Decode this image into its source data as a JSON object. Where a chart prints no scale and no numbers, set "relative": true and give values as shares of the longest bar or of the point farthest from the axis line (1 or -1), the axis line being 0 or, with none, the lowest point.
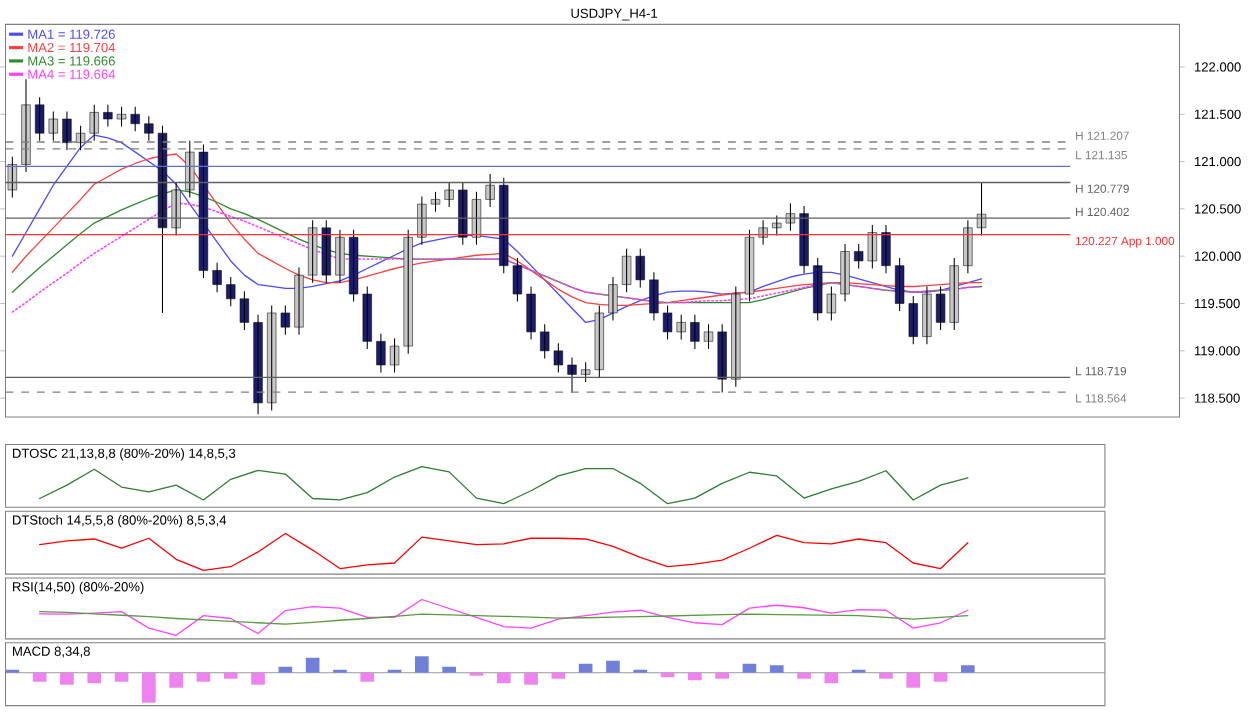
{
  "chart_data": [
    {
      "type": "candlestick",
      "title": "USDJPY_H4-1",
      "categories": [
        null,
        null,
        null,
        null,
        null,
        null,
        null,
        null,
        null,
        null,
        null,
        null,
        null,
        null,
        null,
        null,
        null,
        null,
        null,
        null,
        null,
        null,
        null,
        null,
        null,
        null,
        null,
        null,
        null,
        null,
        null,
        null,
        null,
        null,
        null,
        null,
        null,
        null,
        null,
        null,
        null,
        null,
        null,
        null,
        null,
        null,
        null,
        null,
        null,
        null,
        null,
        null,
        null,
        null,
        null,
        null,
        null,
        null,
        null,
        null,
        null,
        null,
        null,
        null,
        null,
        null,
        null,
        null,
        null,
        null,
        null,
        null,
        null,
        null,
        null,
        null,
        null,
        null,
        null,
        null,
        null,
        null,
        null,
        null,
        null,
        null
      ],
      "ohlc": [
        [
          120.7,
          121.05,
          120.62,
          120.97
        ],
        [
          120.97,
          121.87,
          120.89,
          121.6
        ],
        [
          121.6,
          121.68,
          121.22,
          121.3
        ],
        [
          121.3,
          121.53,
          121.22,
          121.45
        ],
        [
          121.45,
          121.53,
          121.12,
          121.2
        ],
        [
          121.2,
          121.38,
          121.12,
          121.3
        ],
        [
          121.3,
          121.6,
          121.22,
          121.52
        ],
        [
          121.52,
          121.6,
          121.37,
          121.45
        ],
        [
          121.45,
          121.58,
          121.37,
          121.5
        ],
        [
          121.5,
          121.58,
          121.32,
          121.4
        ],
        [
          121.4,
          121.48,
          121.22,
          121.3
        ],
        [
          121.3,
          121.38,
          119.4,
          120.3
        ],
        [
          120.3,
          120.78,
          120.22,
          120.7
        ],
        [
          120.7,
          121.22,
          120.62,
          121.1
        ],
        [
          121.1,
          121.18,
          119.77,
          119.85
        ],
        [
          119.85,
          119.93,
          119.62,
          119.7
        ],
        [
          119.7,
          119.78,
          119.47,
          119.55
        ],
        [
          119.55,
          119.63,
          119.22,
          119.3
        ],
        [
          119.3,
          119.38,
          118.33,
          118.45
        ],
        [
          118.45,
          119.48,
          118.37,
          119.4
        ],
        [
          119.4,
          119.48,
          119.17,
          119.25
        ],
        [
          119.25,
          119.88,
          119.17,
          119.8
        ],
        [
          119.8,
          120.38,
          119.72,
          120.3
        ],
        [
          120.3,
          120.38,
          119.72,
          119.8
        ],
        [
          119.8,
          120.28,
          119.72,
          120.2
        ],
        [
          120.2,
          120.28,
          119.52,
          119.6
        ],
        [
          119.6,
          119.68,
          119.02,
          119.1
        ],
        [
          119.1,
          119.18,
          118.77,
          118.85
        ],
        [
          118.85,
          119.13,
          118.77,
          119.05
        ],
        [
          119.05,
          120.28,
          118.97,
          120.2
        ],
        [
          120.2,
          120.63,
          120.12,
          120.55
        ],
        [
          120.55,
          120.68,
          120.47,
          120.6
        ],
        [
          120.6,
          120.78,
          120.52,
          120.7
        ],
        [
          120.7,
          120.78,
          120.12,
          120.2
        ],
        [
          120.2,
          120.68,
          120.12,
          120.6
        ],
        [
          120.6,
          120.87,
          120.52,
          120.75
        ],
        [
          120.75,
          120.83,
          119.82,
          119.9
        ],
        [
          119.9,
          119.98,
          119.52,
          119.6
        ],
        [
          119.6,
          119.68,
          119.12,
          119.2
        ],
        [
          119.2,
          119.28,
          118.92,
          119.0
        ],
        [
          119.0,
          119.08,
          118.77,
          118.85
        ],
        [
          118.85,
          118.93,
          118.56,
          118.75
        ],
        [
          118.75,
          118.88,
          118.67,
          118.8
        ],
        [
          118.8,
          119.48,
          118.72,
          119.4
        ],
        [
          119.4,
          119.78,
          119.32,
          119.7
        ],
        [
          119.7,
          120.08,
          119.62,
          120.0
        ],
        [
          120.0,
          120.08,
          119.67,
          119.75
        ],
        [
          119.75,
          119.83,
          119.32,
          119.4
        ],
        [
          119.4,
          119.48,
          119.12,
          119.2
        ],
        [
          119.2,
          119.38,
          119.12,
          119.3
        ],
        [
          119.3,
          119.38,
          119.02,
          119.1
        ],
        [
          119.1,
          119.28,
          119.02,
          119.2
        ],
        [
          119.2,
          119.28,
          118.56,
          118.7
        ],
        [
          118.7,
          119.68,
          118.62,
          119.6
        ],
        [
          119.6,
          120.28,
          119.52,
          120.2
        ],
        [
          120.2,
          120.38,
          120.12,
          120.3
        ],
        [
          120.3,
          120.43,
          120.22,
          120.35
        ],
        [
          120.35,
          120.56,
          120.27,
          120.45
        ],
        [
          120.45,
          120.53,
          119.82,
          119.9
        ],
        [
          119.9,
          119.98,
          119.32,
          119.4
        ],
        [
          119.4,
          119.68,
          119.32,
          119.6
        ],
        [
          119.6,
          120.13,
          119.52,
          120.05
        ],
        [
          120.05,
          120.13,
          119.87,
          119.95
        ],
        [
          119.95,
          120.33,
          119.87,
          120.25
        ],
        [
          120.25,
          120.33,
          119.82,
          119.9
        ],
        [
          119.9,
          119.98,
          119.42,
          119.5
        ],
        [
          119.5,
          119.58,
          119.07,
          119.15
        ],
        [
          119.15,
          119.68,
          119.07,
          119.6
        ],
        [
          119.6,
          119.68,
          119.22,
          119.3
        ],
        [
          119.3,
          119.98,
          119.22,
          119.9
        ],
        [
          119.9,
          120.38,
          119.82,
          120.3
        ],
        [
          120.3,
          120.779,
          120.22,
          120.444
        ],
        null,
        null,
        null,
        null,
        null,
        null,
        null,
        null,
        null,
        null,
        null,
        null,
        null,
        null
      ],
      "colors": [
        "#c8c8c8",
        "#c8c8c8",
        "#1c1c6c",
        "#c8c8c8",
        "#1c1c6c",
        "#c8c8c8",
        "#c8c8c8",
        "#1c1c6c",
        "#c8c8c8",
        "#1c1c6c",
        "#1c1c6c",
        "#1c1c6c",
        "#c8c8c8",
        "#c8c8c8",
        "#1c1c6c",
        "#1c1c6c",
        "#1c1c6c",
        "#1c1c6c",
        "#1c1c6c",
        "#c8c8c8",
        "#1c1c6c",
        "#c8c8c8",
        "#c8c8c8",
        "#1c1c6c",
        "#c8c8c8",
        "#1c1c6c",
        "#1c1c6c",
        "#1c1c6c",
        "#c8c8c8",
        "#c8c8c8",
        "#c8c8c8",
        "#c8c8c8",
        "#c8c8c8",
        "#1c1c6c",
        "#c8c8c8",
        "#c8c8c8",
        "#1c1c6c",
        "#1c1c6c",
        "#1c1c6c",
        "#1c1c6c",
        "#1c1c6c",
        "#1c1c6c",
        "#c8c8c8",
        "#c8c8c8",
        "#c8c8c8",
        "#c8c8c8",
        "#1c1c6c",
        "#1c1c6c",
        "#1c1c6c",
        "#c8c8c8",
        "#1c1c6c",
        "#c8c8c8",
        "#1c1c6c",
        "#c8c8c8",
        "#c8c8c8",
        "#c8c8c8",
        "#c8c8c8",
        "#c8c8c8",
        "#1c1c6c",
        "#1c1c6c",
        "#c8c8c8",
        "#c8c8c8",
        "#1c1c6c",
        "#c8c8c8",
        "#1c1c6c",
        "#1c1c6c",
        "#1c1c6c",
        "#c8c8c8",
        "#1c1c6c",
        "#c8c8c8",
        "#c8c8c8",
        "#c8c8c8",
        null,
        null,
        null,
        null,
        null,
        null,
        null,
        null,
        null,
        null,
        null,
        null,
        null,
        null
      ],
      "series": [
        {
          "type": "line",
          "name": "MA1 = 119.726",
          "color": "#4a4aff",
          "values": [
            120.0,
            120.25,
            120.5,
            120.75,
            120.95,
            121.15,
            121.28,
            121.25,
            121.2,
            121.1,
            121.0,
            120.9,
            120.76,
            120.55,
            120.35,
            120.15,
            119.95,
            119.8,
            119.7,
            119.68,
            119.66,
            119.66,
            119.68,
            119.71,
            119.74,
            119.8,
            119.87,
            119.94,
            120.01,
            120.08,
            120.14,
            120.17,
            120.2,
            120.22,
            120.22,
            120.2,
            120.18,
            120.05,
            119.9,
            119.75,
            119.6,
            119.45,
            119.3,
            119.33,
            119.4,
            119.47,
            119.53,
            119.58,
            119.62,
            119.63,
            119.63,
            119.62,
            119.6,
            null,
            119.62,
            119.68,
            119.73,
            119.78,
            119.81,
            119.83,
            119.83,
            119.8,
            119.76,
            119.72,
            119.68,
            119.64,
            119.62,
            119.62,
            119.64,
            119.68,
            119.72,
            119.76,
            null,
            null,
            null,
            null,
            null,
            null,
            null,
            null,
            null,
            null,
            null,
            null,
            null,
            null
          ]
        },
        {
          "type": "line",
          "name": "MA2 = 119.704",
          "color": "#ff4040",
          "values": [
            119.83,
            120.0,
            120.15,
            120.3,
            120.45,
            120.6,
            120.76,
            120.84,
            120.92,
            120.98,
            121.03,
            121.06,
            121.08,
            120.95,
            120.75,
            120.55,
            120.35,
            120.18,
            120.03,
            119.95,
            119.87,
            119.8,
            119.75,
            119.72,
            119.72,
            119.75,
            119.79,
            119.83,
            119.87,
            119.9,
            119.93,
            119.95,
            119.97,
            119.99,
            120.01,
            120.02,
            120.03,
            119.95,
            119.85,
            119.75,
            119.65,
            119.57,
            119.51,
            119.49,
            119.48,
            119.48,
            119.49,
            119.5,
            119.51,
            119.53,
            119.55,
            119.57,
            119.59,
            119.61,
            119.62,
            119.64,
            119.66,
            119.68,
            119.7,
            119.71,
            119.72,
            119.72,
            119.71,
            119.7,
            119.69,
            119.68,
            119.68,
            119.69,
            119.7,
            119.71,
            119.72,
            119.72,
            null,
            null,
            null,
            null,
            null,
            null,
            null,
            null,
            null,
            null,
            null,
            null,
            null,
            null
          ]
        },
        {
          "type": "line",
          "name": "MA3 = 119.666",
          "color": "#2e8b2e",
          "values": [
            119.62,
            119.75,
            119.88,
            120.0,
            120.12,
            120.24,
            120.35,
            120.42,
            120.49,
            120.55,
            120.61,
            120.66,
            120.7,
            120.68,
            120.63,
            120.57,
            120.5,
            120.45,
            120.39,
            120.32,
            120.25,
            120.18,
            120.12,
            120.07,
            120.03,
            120.01,
            120.0,
            119.99,
            119.98,
            119.97,
            119.97,
            119.97,
            119.97,
            119.97,
            119.97,
            119.97,
            119.97,
            119.91,
            119.85,
            119.79,
            119.73,
            119.67,
            119.62,
            119.6,
            119.58,
            119.56,
            119.54,
            119.52,
            119.51,
            119.51,
            119.51,
            119.51,
            119.51,
            119.51,
            119.51,
            119.54,
            119.58,
            119.62,
            119.66,
            119.69,
            119.72,
            119.7,
            119.68,
            119.66,
            119.64,
            119.63,
            119.62,
            119.63,
            119.64,
            119.65,
            119.67,
            119.68,
            null,
            null,
            null,
            null,
            null,
            null,
            null,
            null,
            null,
            null,
            null,
            null,
            null,
            null
          ]
        },
        {
          "type": "line",
          "name": "MA4 = 119.664",
          "color": "#ff40ff",
          "line_style": "dotted",
          "values": [
            119.41,
            119.51,
            119.62,
            119.72,
            119.82,
            119.93,
            120.03,
            120.12,
            120.21,
            120.3,
            120.39,
            120.48,
            120.56,
            120.55,
            120.52,
            120.47,
            120.42,
            120.37,
            120.31,
            120.25,
            120.19,
            120.13,
            120.07,
            120.02,
            119.97,
            119.97,
            119.97,
            119.97,
            119.97,
            119.97,
            119.97,
            119.97,
            119.97,
            119.97,
            119.97,
            119.97,
            119.97,
            119.91,
            119.85,
            119.79,
            119.73,
            119.67,
            119.62,
            119.6,
            119.58,
            119.56,
            119.54,
            119.52,
            119.51,
            119.51,
            119.52,
            119.53,
            119.53,
            119.54,
            119.55,
            119.58,
            119.61,
            119.64,
            119.67,
            119.7,
            119.72,
            119.7,
            119.68,
            119.66,
            119.64,
            119.63,
            119.62,
            119.63,
            119.64,
            119.65,
            119.67,
            119.68,
            null,
            null,
            null,
            null,
            null,
            null,
            null,
            null,
            null,
            null,
            null,
            null,
            null,
            null
          ]
        }
      ],
      "ylim": [
        118.3,
        122.45
      ],
      "yticks": [
        {
          "value": 118.5,
          "label": "118.500"
        },
        {
          "value": 119,
          "label": "119.000"
        },
        {
          "value": 119.5,
          "label": "119.500"
        },
        {
          "value": 120,
          "label": "120.000"
        },
        {
          "value": 120.5,
          "label": "120.500"
        },
        {
          "value": 121,
          "label": "121.000"
        },
        {
          "value": 121.5,
          "label": "121.500"
        },
        {
          "value": 122,
          "label": "122.000"
        }
      ],
      "ref_lines": [
        {
          "axis": "y",
          "value": 121.207,
          "label": "H 121.207",
          "color": "#808080",
          "line_style": "dashed"
        },
        {
          "axis": "y",
          "value": 121.135,
          "label": "L 121.135",
          "color": "#808080",
          "line_style": "dashed"
        },
        {
          "axis": "y",
          "value": 120.95,
          "color": "#6070d0"
        },
        {
          "axis": "y",
          "value": 120.779,
          "label": "H 120.779",
          "color": "#606060"
        },
        {
          "axis": "y",
          "value": 120.402,
          "label": "H 120.402",
          "color": "#606060"
        },
        {
          "axis": "y",
          "value": 120.227,
          "label": "120.227 App 1.000",
          "color": "#ff3030"
        },
        {
          "axis": "y",
          "value": 118.719,
          "label": "L 118.719",
          "color": "#606060"
        },
        {
          "axis": "y",
          "value": 118.564,
          "label": "L 118.564",
          "color": "#808080",
          "line_style": "dashed"
        }
      ],
      "legend": "top left"
    },
    {
      "type": "line",
      "relative": true,
      "title": "DTOSC 21,13,8,8 (80%-20%) 14,8,5,3",
      "categories": [
        null,
        null,
        null,
        null,
        null,
        null,
        null,
        null,
        null,
        null,
        null,
        null,
        null,
        null,
        null,
        null,
        null,
        null,
        null,
        null,
        null,
        null,
        null,
        null,
        null,
        null,
        null,
        null,
        null,
        null,
        null,
        null,
        null,
        null,
        null,
        null
      ],
      "series": [
        {
          "color": "#2e7d32",
          "values": [
            null,
            0.14,
            0.5,
            0.93,
            0.45,
            0.32,
            0.5,
            0.1,
            0.66,
            0.9,
            0.8,
            0.14,
            0.1,
            0.3,
            0.72,
            1,
            0.86,
            0.15,
            0,
            0.35,
            0.75,
            0.95,
            0.95,
            0.55,
            0,
            0.15,
            0.55,
            0.85,
            0.75,
            0.15,
            0.4,
            0.6,
            0.89,
            0.1,
            0.5,
            0.7
          ]
        }
      ]
    },
    {
      "type": "line",
      "relative": true,
      "title": "DTStoch 14,5,5,8 (80%-20%) 8,5,3,4",
      "categories": [
        null,
        null,
        null,
        null,
        null,
        null,
        null,
        null,
        null,
        null,
        null,
        null,
        null,
        null,
        null,
        null,
        null,
        null,
        null,
        null,
        null,
        null,
        null,
        null,
        null,
        null,
        null,
        null,
        null,
        null,
        null,
        null,
        null,
        null,
        null,
        null
      ],
      "series": [
        {
          "color": "#ff0000",
          "values": [
            null,
            0.7,
            0.8,
            0.85,
            0.6,
            0.87,
            0.3,
            0,
            0.1,
            0.5,
            1,
            0.55,
            0.05,
            0.15,
            0.2,
            0.9,
            0.8,
            0.7,
            0.72,
            0.87,
            0.87,
            0.85,
            0.65,
            0.35,
            0.1,
            0.17,
            0.28,
            0.6,
            0.95,
            0.75,
            0.72,
            0.85,
            0.75,
            0.2,
            0.05,
            0.75
          ]
        }
      ]
    },
    {
      "type": "line",
      "relative": true,
      "title": "RSI(14,50) (80%-20%)",
      "categories": [
        null,
        null,
        null,
        null,
        null,
        null,
        null,
        null,
        null,
        null,
        null,
        null,
        null,
        null,
        null,
        null,
        null,
        null,
        null,
        null,
        null,
        null,
        null,
        null,
        null,
        null,
        null,
        null,
        null,
        null,
        null,
        null,
        null,
        null,
        null,
        null
      ],
      "series": [
        {
          "color": "#ff44ff",
          "values": [
            null,
            0.6,
            0.59,
            0.62,
            0.66,
            0.2,
            0,
            0.55,
            0.47,
            0.05,
            0.69,
            0.8,
            0.76,
            0.5,
            0.5,
            1,
            0.75,
            0.5,
            0.24,
            0.2,
            0.45,
            0.55,
            0.65,
            0.7,
            0.5,
            0.35,
            0.3,
            0.76,
            0.84,
            0.77,
            0.62,
            0.72,
            0.7,
            0.2,
            0.35,
            0.7
          ]
        },
        {
          "color": "#5a9a40",
          "values": [
            null,
            0.66,
            0.64,
            0.6,
            0.56,
            0.52,
            0.47,
            0.43,
            0.39,
            0.35,
            0.31,
            0.36,
            0.42,
            0.47,
            0.53,
            0.59,
            0.57,
            0.55,
            0.53,
            0.51,
            0.48,
            0.49,
            0.51,
            0.52,
            0.54,
            0.56,
            0.58,
            0.59,
            0.58,
            0.57,
            0.56,
            0.55,
            0.5,
            0.45,
            0.5,
            0.55
          ]
        }
      ]
    },
    {
      "type": "bar",
      "relative": true,
      "title": "MACD 8,34,8",
      "categories": [
        null,
        null,
        null,
        null,
        null,
        null,
        null,
        null,
        null,
        null,
        null,
        null,
        null,
        null,
        null,
        null,
        null,
        null,
        null,
        null,
        null,
        null,
        null,
        null,
        null,
        null,
        null,
        null,
        null,
        null,
        null,
        null,
        null,
        null,
        null,
        null
      ],
      "values": [
        0.1,
        -0.3,
        -0.4,
        -0.35,
        -0.3,
        -1,
        -0.5,
        -0.3,
        -0.2,
        -0.4,
        0.2,
        0.5,
        0.1,
        -0.3,
        0.1,
        0.55,
        0.2,
        -0.1,
        -0.35,
        -0.4,
        -0.2,
        0.3,
        0.4,
        0.1,
        -0.15,
        -0.25,
        -0.2,
        0.3,
        0.25,
        -0.2,
        -0.35,
        0.1,
        -0.2,
        -0.5,
        -0.3,
        0.25
      ],
      "colors": [
        "#7080d8",
        "#ee82ee",
        "#ee82ee",
        "#ee82ee",
        "#ee82ee",
        "#ee82ee",
        "#ee82ee",
        "#ee82ee",
        "#ee82ee",
        "#ee82ee",
        "#7080d8",
        "#7080d8",
        "#7080d8",
        "#ee82ee",
        "#7080d8",
        "#7080d8",
        "#7080d8",
        "#ee82ee",
        "#ee82ee",
        "#ee82ee",
        "#ee82ee",
        "#7080d8",
        "#7080d8",
        "#7080d8",
        "#ee82ee",
        "#ee82ee",
        "#ee82ee",
        "#7080d8",
        "#7080d8",
        "#ee82ee",
        "#ee82ee",
        "#7080d8",
        "#ee82ee",
        "#ee82ee",
        "#ee82ee",
        "#7080d8"
      ]
    }
  ]
}
